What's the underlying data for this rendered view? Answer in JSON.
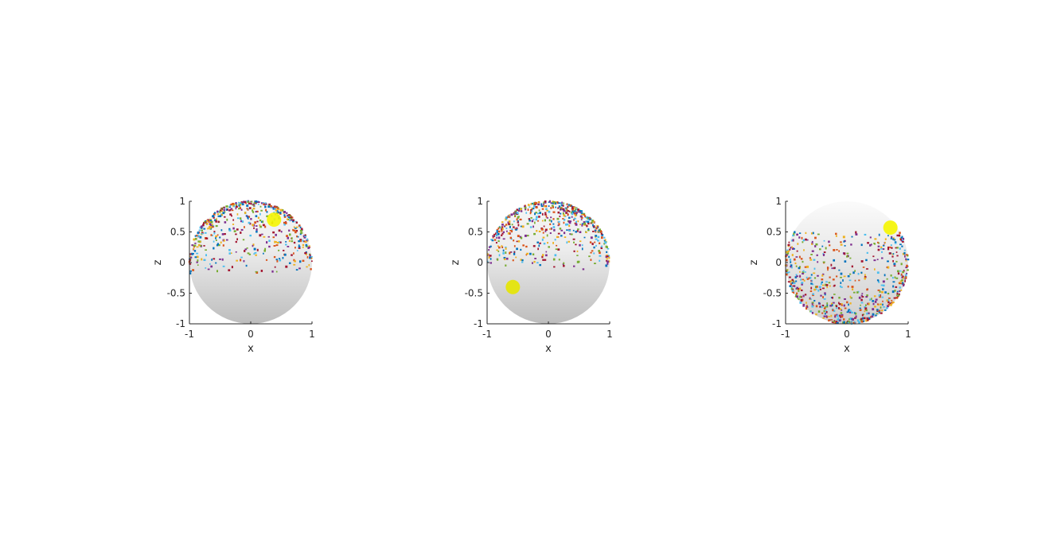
{
  "chart_data": [
    {
      "type": "scatter",
      "projection": "x-z view of unit sphere",
      "xlabel": "x",
      "ylabel": "z",
      "xlim": [
        -1,
        1
      ],
      "ylim": [
        -1,
        1
      ],
      "xticks": [
        -1,
        0,
        1
      ],
      "yticks": [
        -1,
        -0.5,
        0,
        0.5,
        1
      ],
      "xtick_labels": [
        "-1",
        "0",
        "1"
      ],
      "ytick_labels": [
        "-1",
        "-0.5",
        "0",
        "0.5",
        "1"
      ],
      "grid": false,
      "sphere_shading": "dark-bottom",
      "highlight": {
        "x": 0.38,
        "z": 0.7,
        "color": "#f5f500"
      },
      "points": {
        "count": 520,
        "z_min": -0.22,
        "density": "top",
        "seed": 11
      }
    },
    {
      "type": "scatter",
      "projection": "x-z view of unit sphere",
      "xlabel": "x",
      "ylabel": "z",
      "xlim": [
        -1,
        1
      ],
      "ylim": [
        -1,
        1
      ],
      "xticks": [
        -1,
        0,
        1
      ],
      "yticks": [
        -1,
        -0.5,
        0,
        0.5,
        1
      ],
      "xtick_labels": [
        "-1",
        "0",
        "1"
      ],
      "ytick_labels": [
        "-1",
        "-0.5",
        "0",
        "0.5",
        "1"
      ],
      "grid": false,
      "sphere_shading": "dark-bottom",
      "highlight": {
        "x": -0.58,
        "z": -0.4,
        "color": "#e6e600"
      },
      "points": {
        "count": 560,
        "z_min": -0.12,
        "density": "top",
        "seed": 29
      }
    },
    {
      "type": "scatter",
      "projection": "x-z view of unit sphere",
      "xlabel": "x",
      "ylabel": "z",
      "xlim": [
        -1,
        1
      ],
      "ylim": [
        -1,
        1
      ],
      "xticks": [
        -1,
        0,
        1
      ],
      "yticks": [
        -1,
        -0.5,
        0,
        0.5,
        1
      ],
      "xtick_labels": [
        "-1",
        "0",
        "1"
      ],
      "ytick_labels": [
        "-1",
        "-0.5",
        "0",
        "0.5",
        "1"
      ],
      "grid": false,
      "sphere_shading": "dark-top",
      "highlight": {
        "x": 0.71,
        "z": 0.57,
        "color": "#f5f500"
      },
      "points": {
        "count": 640,
        "z_min": -1.0,
        "z_max": 0.5,
        "density": "bottom",
        "seed": 47
      }
    }
  ],
  "palette": [
    "#0072bd",
    "#d95319",
    "#edb120",
    "#7e2f8e",
    "#77ac30",
    "#4dbeee",
    "#a2142f"
  ]
}
